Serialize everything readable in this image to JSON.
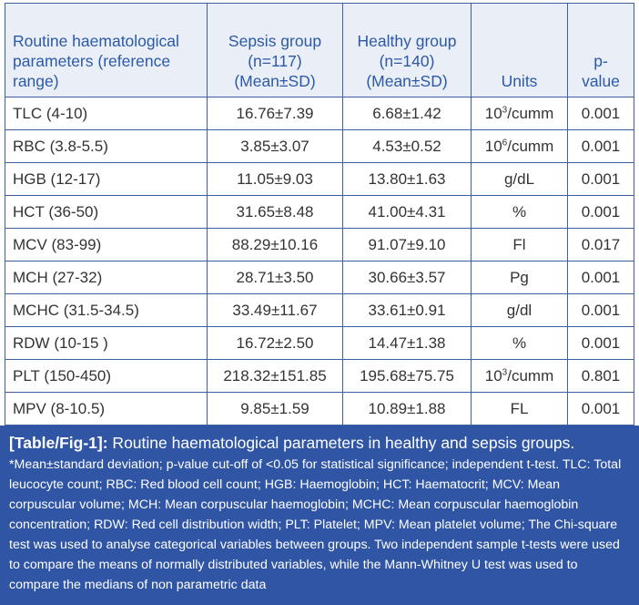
{
  "table": {
    "headers": [
      "Routine haematological parameters (reference range)",
      "Sepsis group (n=117) (Mean±SD)",
      "Healthy group (n=140) (Mean±SD)",
      "Units",
      "p-value"
    ],
    "rows": [
      {
        "param": "TLC (4-10)",
        "sepsis": "16.76±7.39",
        "healthy": "6.68±1.42",
        "unit_base": "10",
        "unit_exp": "3",
        "unit_rest": "/cumm",
        "p": "0.001"
      },
      {
        "param": "RBC (3.8-5.5)",
        "sepsis": "3.85±3.07",
        "healthy": "4.53±0.52",
        "unit_base": "10",
        "unit_exp": "6",
        "unit_rest": "/cumm",
        "p": "0.001"
      },
      {
        "param": "HGB (12-17)",
        "sepsis": "11.05±9.03",
        "healthy": "13.80±1.63",
        "unit_base": "g/dL",
        "p": "0.001"
      },
      {
        "param": "HCT (36-50)",
        "sepsis": "31.65±8.48",
        "healthy": "41.00±4.31",
        "unit_base": "%",
        "p": "0.001"
      },
      {
        "param": "MCV (83-99)",
        "sepsis": "88.29±10.16",
        "healthy": "91.07±9.10",
        "unit_base": "Fl",
        "p": "0.017"
      },
      {
        "param": "MCH (27-32)",
        "sepsis": "28.71±3.50",
        "healthy": "30.66±3.57",
        "unit_base": "Pg",
        "p": "0.001"
      },
      {
        "param": "MCHC (31.5-34.5)",
        "sepsis": "33.49±11.67",
        "healthy": "33.61±0.91",
        "unit_base": "g/dl",
        "p": "0.001"
      },
      {
        "param": "RDW (10-15 )",
        "sepsis": "16.72±2.50",
        "healthy": "14.47±1.38",
        "unit_base": "%",
        "p": "0.001"
      },
      {
        "param": "PLT (150-450)",
        "sepsis": "218.32±151.85",
        "healthy": "195.68±75.75",
        "unit_base": "10",
        "unit_exp": "3",
        "unit_rest": "/cumm",
        "p": "0.801"
      },
      {
        "param": "MPV (8-10.5)",
        "sepsis": "9.85±1.59",
        "healthy": "10.89±1.88",
        "unit_base": "FL",
        "p": "0.001"
      }
    ]
  },
  "caption": {
    "label": "[Table/Fig-1]:",
    "title": " Routine haematological parameters in healthy and sepsis groups.",
    "note": "*Mean±standard deviation; p-value cut-off of <0.05 for statistical significance; independent t-test. TLC: Total leucocyte count; RBC: Red blood cell count; HGB: Haemoglobin; HCT: Haematocrit; MCV: Mean corpuscular volume; MCH: Mean corpuscular haemoglobin; MCHC: Mean corpuscular haemoglobin concentration; RDW: Red cell distribution width; PLT: Platelet; MPV: Mean platelet volume; The Chi-square test was used to analyse categorical variables between groups. Two independent sample t-tests were used to compare the means of normally distributed variables, while the Mann-Whitney U test was used to compare the medians of non parametric data"
  }
}
